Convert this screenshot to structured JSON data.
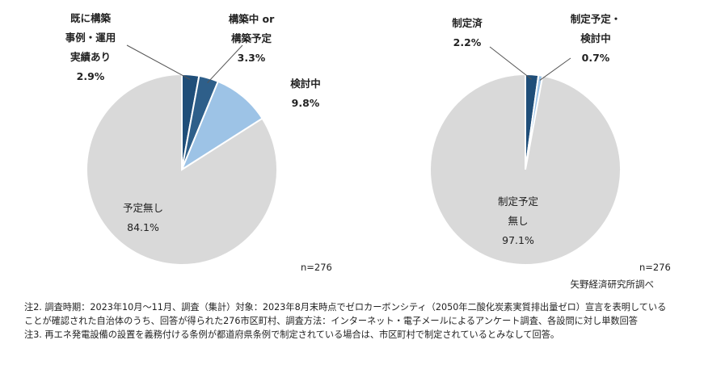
{
  "chart_data": [
    {
      "type": "pie",
      "n_label": "n=276",
      "slices": [
        {
          "lines": [
            "既に構築",
            "事例・運用",
            "実績あり"
          ],
          "value": 2.9,
          "value_label": "2.9%",
          "color": "#1f4e79"
        },
        {
          "lines": [
            "構築中 or",
            "構築予定"
          ],
          "value": 3.3,
          "value_label": "3.3%",
          "color": "#2e5f8a"
        },
        {
          "lines": [
            "検討中"
          ],
          "value": 9.8,
          "value_label": "9.8%",
          "color": "#9dc3e6"
        },
        {
          "lines": [
            "予定無し"
          ],
          "value": 84.1,
          "value_label": "84.1%",
          "color": "#d9d9d9"
        }
      ]
    },
    {
      "type": "pie",
      "n_label": "n=276",
      "slices": [
        {
          "lines": [
            "制定済"
          ],
          "value": 2.2,
          "value_label": "2.2%",
          "color": "#1f4e79"
        },
        {
          "lines": [
            "制定予定・",
            "検討中"
          ],
          "value": 0.7,
          "value_label": "0.7%",
          "color": "#9dc3e6"
        },
        {
          "lines": [
            "制定予定",
            "無し"
          ],
          "value": 97.1,
          "value_label": "97.1%",
          "color": "#d9d9d9"
        }
      ]
    }
  ],
  "source": "矢野経済研究所調べ",
  "notes": [
    "注2. 調査時期：2023年10月～11月、調査（集計）対象：2023年8月末時点でゼロカーボンシティ（2050年二酸化炭素実質排出量ゼロ）宣言を表明していることが確認された自治体のうち、回答が得られた276市区町村、調査方法：インターネット・電子メールによるアンケート調査、各設問に対し単数回答",
    "注3. 再エネ発電設備の設置を義務付ける条例が都道府県条例で制定されている場合は、市区町村で制定されているとみなして回答。"
  ]
}
